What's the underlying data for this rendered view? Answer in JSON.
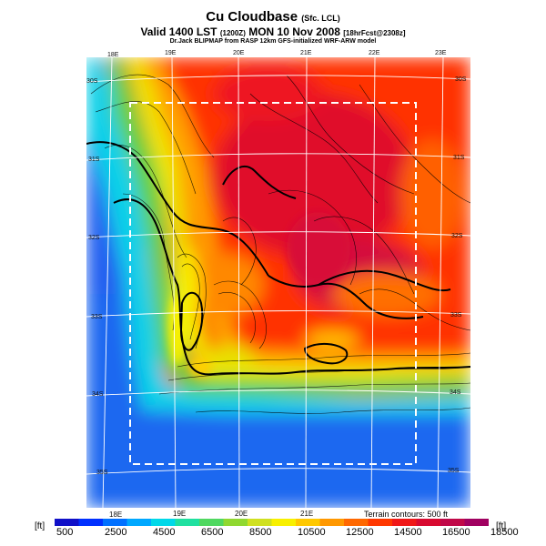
{
  "header": {
    "title": "Cu Cloudbase",
    "title_note": "(Sfc. LCL)",
    "valid": "Valid 1400 LST",
    "valid_note": "(1200Z)",
    "date": "MON 10 Nov 2008",
    "run_note": "[18hrFcst@2308z]",
    "source": "Dr.Jack BLIPMAP from RASP 12km GFS-initialized WRF-ARW model"
  },
  "map": {
    "top_lon_labels": [
      "18E",
      "19E",
      "20E",
      "21E",
      "22E",
      "23E"
    ],
    "bottom_lon_labels": [
      "18E",
      "19E",
      "20E",
      "21E"
    ],
    "left_lat_labels": [
      "30S",
      "31S",
      "32S",
      "33S",
      "34S",
      "35S"
    ],
    "right_lat_labels": [
      "30S",
      "31S",
      "32S",
      "33S",
      "34S",
      "35S"
    ],
    "terrain_note": "Terrain contours: 500 ft"
  },
  "legend": {
    "unit_left": "[ft]",
    "unit_right": "[ft]",
    "labels": [
      "500",
      "2500",
      "4500",
      "6500",
      "8500",
      "10500",
      "12500",
      "14500",
      "16500",
      "18500"
    ],
    "colors": [
      "#1010c8",
      "#0030ff",
      "#0070ff",
      "#00a8ff",
      "#00d8e8",
      "#20e0a0",
      "#50d860",
      "#90d830",
      "#d0e020",
      "#f8f000",
      "#ffc800",
      "#ff9800",
      "#ff6800",
      "#ff3800",
      "#f01818",
      "#d80a30",
      "#c00848",
      "#a00060"
    ]
  }
}
